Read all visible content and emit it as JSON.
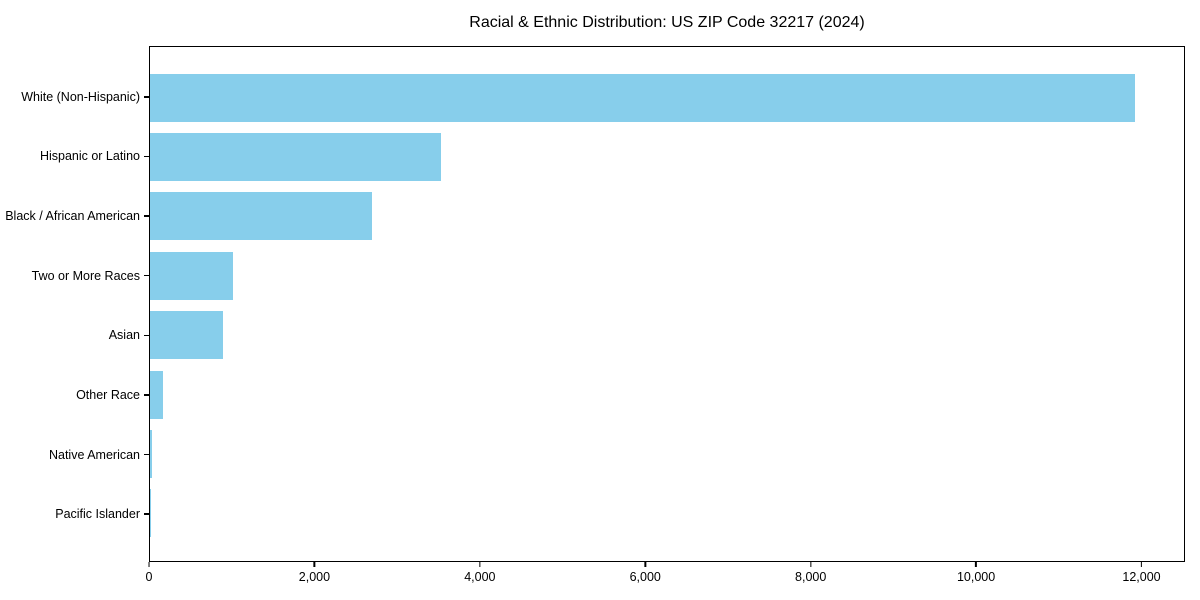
{
  "chart_data": {
    "type": "bar",
    "orientation": "horizontal",
    "title": "Racial & Ethnic Distribution: US ZIP Code 32217 (2024)",
    "categories": [
      "White (Non-Hispanic)",
      "Hispanic or Latino",
      "Black / African American",
      "Two or More Races",
      "Asian",
      "Other Race",
      "Native American",
      "Pacific Islander"
    ],
    "values": [
      11930,
      3530,
      2690,
      1010,
      880,
      155,
      20,
      5
    ],
    "xlabel": "",
    "ylabel": "",
    "xlim": [
      0,
      12526
    ],
    "xticks": {
      "values": [
        0,
        2000,
        4000,
        6000,
        8000,
        10000,
        12000
      ],
      "labels": [
        "0",
        "2,000",
        "4,000",
        "6,000",
        "8,000",
        "10,000",
        "12,000"
      ]
    },
    "bar_color": "#87CEEB",
    "background_color": "#ffffff",
    "axis_color": "#000000",
    "grid": false,
    "legend_position": "none"
  }
}
